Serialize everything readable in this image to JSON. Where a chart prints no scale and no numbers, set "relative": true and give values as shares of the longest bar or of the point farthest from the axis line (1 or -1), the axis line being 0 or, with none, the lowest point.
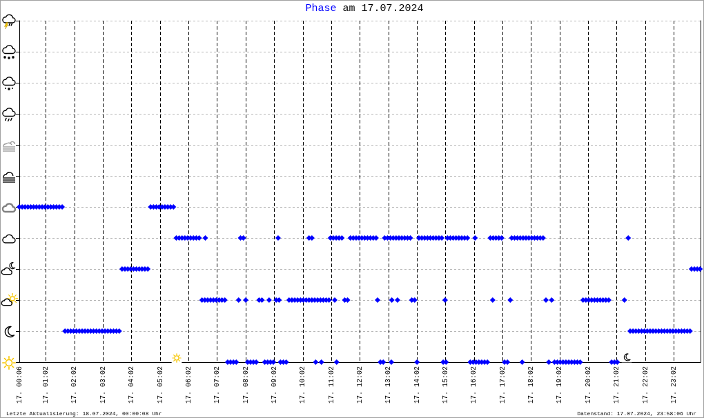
{
  "chart_data": {
    "type": "scatter",
    "title": "am 17.07.2024",
    "annotations": [
      "Letzte Aktualisierung: 18.07.2024, 00:00:08 Uhr",
      "Datenstand: 17.07.2024, 23:58:06 Uhr"
    ],
    "xlim": [
      "2024-07-17T00:06",
      "2024-07-17T23:58"
    ],
    "xticks": [
      {
        "value": "2024-07-17T00:06",
        "label": "17. 00:06"
      },
      {
        "value": "2024-07-17T01:02",
        "label": "17. 01:02"
      },
      {
        "value": "2024-07-17T02:02",
        "label": "17. 02:02"
      },
      {
        "value": "2024-07-17T03:02",
        "label": "17. 03:02"
      },
      {
        "value": "2024-07-17T04:02",
        "label": "17. 04:02"
      },
      {
        "value": "2024-07-17T05:02",
        "label": "17. 05:02"
      },
      {
        "value": "2024-07-17T06:02",
        "label": "17. 06:02"
      },
      {
        "value": "2024-07-17T07:02",
        "label": "17. 07:02"
      },
      {
        "value": "2024-07-17T08:02",
        "label": "17. 08:02"
      },
      {
        "value": "2024-07-17T09:02",
        "label": "17. 09:02"
      },
      {
        "value": "2024-07-17T10:02",
        "label": "17. 10:02"
      },
      {
        "value": "2024-07-17T11:02",
        "label": "17. 11:02"
      },
      {
        "value": "2024-07-17T12:02",
        "label": "17. 12:02"
      },
      {
        "value": "2024-07-17T13:02",
        "label": "17. 13:02"
      },
      {
        "value": "2024-07-17T14:02",
        "label": "17. 14:02"
      },
      {
        "value": "2024-07-17T15:02",
        "label": "17. 15:02"
      },
      {
        "value": "2024-07-17T16:02",
        "label": "17. 16:02"
      },
      {
        "value": "2024-07-17T17:02",
        "label": "17. 17:02"
      },
      {
        "value": "2024-07-17T18:02",
        "label": "17. 18:02"
      },
      {
        "value": "2024-07-17T19:02",
        "label": "17. 19:02"
      },
      {
        "value": "2024-07-17T20:02",
        "label": "17. 20:02"
      },
      {
        "value": "2024-07-17T21:02",
        "label": "17. 21:02"
      },
      {
        "value": "2024-07-17T22:02",
        "label": "17. 22:02"
      },
      {
        "value": "2024-07-17T23:02",
        "label": "17. 23:02"
      }
    ],
    "relative": true,
    "tick_labels": "x",
    "grid": true,
    "legend": "top",
    "marker": "diamond",
    "series": [
      {
        "name": "Phase",
        "color": "#0000ff",
        "x": [
          "2024-07-17T00:06",
          "2024-07-17T00:12",
          "2024-07-17T00:18",
          "2024-07-17T00:24",
          "2024-07-17T00:30",
          "2024-07-17T00:36",
          "2024-07-17T00:42",
          "2024-07-17T00:48",
          "2024-07-17T00:54",
          "2024-07-17T01:00",
          "2024-07-17T01:06",
          "2024-07-17T01:12",
          "2024-07-17T01:18",
          "2024-07-17T01:24",
          "2024-07-17T01:30",
          "2024-07-17T01:36",
          "2024-07-17T01:42",
          "2024-07-17T01:48",
          "2024-07-17T01:54",
          "2024-07-17T02:00",
          "2024-07-17T02:06",
          "2024-07-17T02:12",
          "2024-07-17T02:18",
          "2024-07-17T02:24",
          "2024-07-17T02:30",
          "2024-07-17T02:36",
          "2024-07-17T02:42",
          "2024-07-17T02:48",
          "2024-07-17T02:54",
          "2024-07-17T03:00",
          "2024-07-17T03:06",
          "2024-07-17T03:12",
          "2024-07-17T03:18",
          "2024-07-17T03:24",
          "2024-07-17T03:30",
          "2024-07-17T03:36",
          "2024-07-17T03:42",
          "2024-07-17T03:48",
          "2024-07-17T03:54",
          "2024-07-17T04:00",
          "2024-07-17T04:06",
          "2024-07-17T04:12",
          "2024-07-17T04:18",
          "2024-07-17T04:24",
          "2024-07-17T04:30",
          "2024-07-17T04:36",
          "2024-07-17T04:42",
          "2024-07-17T04:48",
          "2024-07-17T04:54",
          "2024-07-17T05:00",
          "2024-07-17T05:06",
          "2024-07-17T05:12",
          "2024-07-17T05:18",
          "2024-07-17T05:24",
          "2024-07-17T05:30",
          "2024-07-17T05:36",
          "2024-07-17T05:42",
          "2024-07-17T05:48",
          "2024-07-17T05:54",
          "2024-07-17T06:00",
          "2024-07-17T06:06",
          "2024-07-17T06:12",
          "2024-07-17T06:18",
          "2024-07-17T06:24",
          "2024-07-17T06:30",
          "2024-07-17T06:36",
          "2024-07-17T06:42",
          "2024-07-17T06:48",
          "2024-07-17T06:54",
          "2024-07-17T07:00",
          "2024-07-17T07:06",
          "2024-07-17T07:12",
          "2024-07-17T07:18",
          "2024-07-17T06:37",
          "2024-07-17T07:24",
          "2024-07-17T07:30",
          "2024-07-17T07:36",
          "2024-07-17T07:42",
          "2024-07-17T07:47",
          "2024-07-17T07:51",
          "2024-07-17T07:57",
          "2024-07-17T08:02",
          "2024-07-17T08:06",
          "2024-07-17T08:12",
          "2024-07-17T08:18",
          "2024-07-17T08:24",
          "2024-07-17T08:30",
          "2024-07-17T08:36",
          "2024-07-17T08:42",
          "2024-07-17T08:48",
          "2024-07-17T08:54",
          "2024-07-17T09:00",
          "2024-07-17T08:51",
          "2024-07-17T09:06",
          "2024-07-17T09:12",
          "2024-07-17T09:10",
          "2024-07-17T09:15",
          "2024-07-17T09:21",
          "2024-07-17T09:27",
          "2024-07-17T09:33",
          "2024-07-17T09:39",
          "2024-07-17T09:45",
          "2024-07-17T09:51",
          "2024-07-17T09:57",
          "2024-07-17T10:03",
          "2024-07-17T10:09",
          "2024-07-17T10:15",
          "2024-07-17T10:21",
          "2024-07-17T10:27",
          "2024-07-17T10:33",
          "2024-07-17T10:39",
          "2024-07-17T10:45",
          "2024-07-17T10:51",
          "2024-07-17T10:57",
          "2024-07-17T10:15",
          "2024-07-17T10:21",
          "2024-07-17T10:29",
          "2024-07-17T10:41",
          "2024-07-17T11:00",
          "2024-07-17T11:06",
          "2024-07-17T11:12",
          "2024-07-17T11:18",
          "2024-07-17T11:24",
          "2024-07-17T11:09",
          "2024-07-17T11:13",
          "2024-07-17T11:30",
          "2024-07-17T11:36",
          "2024-07-17T11:42",
          "2024-07-17T11:48",
          "2024-07-17T11:54",
          "2024-07-17T12:00",
          "2024-07-17T12:06",
          "2024-07-17T12:12",
          "2024-07-17T12:18",
          "2024-07-17T12:24",
          "2024-07-17T12:30",
          "2024-07-17T12:36",
          "2024-07-17T12:39",
          "2024-07-17T12:45",
          "2024-07-17T12:51",
          "2024-07-17T12:54",
          "2024-07-17T13:00",
          "2024-07-17T13:06",
          "2024-07-17T13:12",
          "2024-07-17T13:18",
          "2024-07-17T13:24",
          "2024-07-17T13:30",
          "2024-07-17T13:36",
          "2024-07-17T13:42",
          "2024-07-17T13:48",
          "2024-07-17T13:08",
          "2024-07-17T13:09",
          "2024-07-17T13:21",
          "2024-07-17T13:51",
          "2024-07-17T13:57",
          "2024-07-17T14:02",
          "2024-07-17T14:06",
          "2024-07-17T14:12",
          "2024-07-17T14:18",
          "2024-07-17T14:24",
          "2024-07-17T14:30",
          "2024-07-17T14:36",
          "2024-07-17T14:42",
          "2024-07-17T14:48",
          "2024-07-17T14:54",
          "2024-07-17T14:57",
          "2024-07-17T15:03",
          "2024-07-17T15:01",
          "2024-07-17T15:06",
          "2024-07-17T15:12",
          "2024-07-17T15:18",
          "2024-07-17T15:24",
          "2024-07-17T15:30",
          "2024-07-17T15:36",
          "2024-07-17T15:42",
          "2024-07-17T15:48",
          "2024-07-17T15:54",
          "2024-07-17T16:00",
          "2024-07-17T16:06",
          "2024-07-17T16:12",
          "2024-07-17T16:18",
          "2024-07-17T16:24",
          "2024-07-17T16:30",
          "2024-07-17T16:04",
          "2024-07-17T16:36",
          "2024-07-17T16:42",
          "2024-07-17T16:48",
          "2024-07-17T16:54",
          "2024-07-17T17:00",
          "2024-07-17T16:41",
          "2024-07-17T17:06",
          "2024-07-17T17:12",
          "2024-07-17T17:18",
          "2024-07-17T17:21",
          "2024-07-17T17:27",
          "2024-07-17T17:33",
          "2024-07-17T17:39",
          "2024-07-17T17:45",
          "2024-07-17T17:51",
          "2024-07-17T17:57",
          "2024-07-17T18:03",
          "2024-07-17T18:09",
          "2024-07-17T18:15",
          "2024-07-17T18:21",
          "2024-07-17T18:27",
          "2024-07-17T17:43",
          "2024-07-17T18:33",
          "2024-07-17T18:45",
          "2024-07-17T18:39",
          "2024-07-17T18:51",
          "2024-07-17T18:57",
          "2024-07-17T19:03",
          "2024-07-17T19:09",
          "2024-07-17T19:15",
          "2024-07-17T19:21",
          "2024-07-17T19:27",
          "2024-07-17T19:33",
          "2024-07-17T19:39",
          "2024-07-17T19:45",
          "2024-07-17T19:51",
          "2024-07-17T19:57",
          "2024-07-17T20:03",
          "2024-07-17T20:09",
          "2024-07-17T20:15",
          "2024-07-17T20:21",
          "2024-07-17T20:27",
          "2024-07-17T20:33",
          "2024-07-17T20:39",
          "2024-07-17T20:45",
          "2024-07-17T20:51",
          "2024-07-17T20:57",
          "2024-07-17T21:03",
          "2024-07-17T21:18",
          "2024-07-17T21:26",
          "2024-07-17T21:30",
          "2024-07-17T21:36",
          "2024-07-17T21:42",
          "2024-07-17T21:48",
          "2024-07-17T21:54",
          "2024-07-17T22:00",
          "2024-07-17T22:06",
          "2024-07-17T22:12",
          "2024-07-17T22:18",
          "2024-07-17T22:24",
          "2024-07-17T22:30",
          "2024-07-17T22:36",
          "2024-07-17T22:42",
          "2024-07-17T22:48",
          "2024-07-17T22:54",
          "2024-07-17T23:00",
          "2024-07-17T23:06",
          "2024-07-17T23:12",
          "2024-07-17T23:18",
          "2024-07-17T23:24",
          "2024-07-17T23:30",
          "2024-07-17T23:36",
          "2024-07-17T23:39",
          "2024-07-17T23:45",
          "2024-07-17T23:51",
          "2024-07-17T23:57"
        ],
        "values": [
          1,
          1,
          1,
          1,
          1,
          1,
          1,
          1,
          1,
          1,
          1,
          1,
          1,
          1,
          1,
          1,
          0.2,
          0.2,
          0.2,
          0.2,
          0.2,
          0.2,
          0.2,
          0.2,
          0.2,
          0.2,
          0.2,
          0.2,
          0.2,
          0.2,
          0.2,
          0.2,
          0.2,
          0.2,
          0.2,
          0.2,
          0.6,
          0.6,
          0.6,
          0.6,
          0.6,
          0.6,
          0.6,
          0.6,
          0.6,
          0.6,
          1,
          1,
          1,
          1,
          1,
          1,
          1,
          1,
          1,
          0.8,
          0.8,
          0.8,
          0.8,
          0.8,
          0.8,
          0.8,
          0.8,
          0.8,
          0.4,
          0.4,
          0.4,
          0.4,
          0.4,
          0.4,
          0.4,
          0.4,
          0.4,
          0.8,
          0,
          0,
          0,
          0,
          0.4,
          0.8,
          0.8,
          0.4,
          0,
          0,
          0,
          0,
          0.4,
          0.4,
          0,
          0,
          0,
          0,
          0.4,
          0.4,
          0.4,
          0.8,
          0,
          0,
          0,
          0.4,
          0.4,
          0.4,
          0.4,
          0.4,
          0.4,
          0.4,
          0.4,
          0.4,
          0.4,
          0.4,
          0.4,
          0.4,
          0.4,
          0.4,
          0.8,
          0.8,
          0,
          0,
          0.8,
          0.8,
          0.8,
          0.8,
          0.8,
          0.4,
          0,
          0.4,
          0.4,
          0.8,
          0.8,
          0.8,
          0.8,
          0.8,
          0.8,
          0.8,
          0.8,
          0.8,
          0.8,
          0.4,
          0,
          0,
          0.8,
          0.8,
          0.8,
          0.8,
          0.8,
          0.8,
          0.8,
          0.8,
          0.8,
          0.8,
          0,
          0.4,
          0.4,
          0.4,
          0.4,
          0,
          0.8,
          0.8,
          0.8,
          0.8,
          0.8,
          0.8,
          0.8,
          0.8,
          0.8,
          0,
          0,
          0.4,
          0.8,
          0.8,
          0.8,
          0.8,
          0.8,
          0.8,
          0.8,
          0.8,
          0,
          0,
          0,
          0,
          0,
          0,
          0,
          0.8,
          0.8,
          0.8,
          0.8,
          0.8,
          0.8,
          0.4,
          0,
          0,
          0.4,
          0.8,
          0.8,
          0.8,
          0.8,
          0.8,
          0.8,
          0.8,
          0.8,
          0.8,
          0.8,
          0.8,
          0.8,
          0,
          0.4,
          0.4,
          0,
          0,
          0,
          0,
          0,
          0,
          0,
          0,
          0,
          0,
          0,
          0.4,
          0.4,
          0.4,
          0.4,
          0.4,
          0.4,
          0.4,
          0.4,
          0.4,
          0.4,
          0,
          0,
          0,
          0.4,
          0.8,
          0.2,
          0.2,
          0.2,
          0.2,
          0.2,
          0.2,
          0.2,
          0.2,
          0.2,
          0.2,
          0.2,
          0.2,
          0.2,
          0.2,
          0.2,
          0.2,
          0.2,
          0.2,
          0.2,
          0.2,
          0.2,
          0.2,
          0.6,
          0.6,
          0.6,
          0.6
        ]
      }
    ]
  }
}
